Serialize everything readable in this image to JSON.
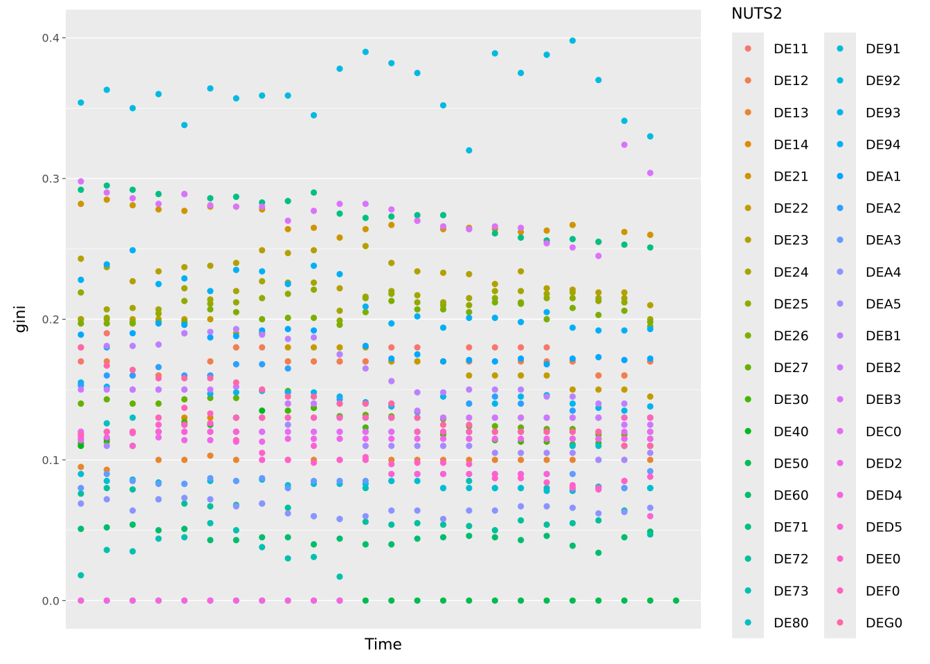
{
  "chart_data": {
    "type": "scatter",
    "xlabel": "Time",
    "ylabel": "gini",
    "ylim": [
      -0.02,
      0.42
    ],
    "yticks": [
      0.0,
      0.1,
      0.2,
      0.3,
      0.4
    ],
    "ytick_labels": [
      "0.0",
      "0.1",
      "0.2",
      "0.3",
      "0.4"
    ],
    "time_periods": 24,
    "grid": true,
    "background": "#ebebeb",
    "legend_title": "NUTS2",
    "legend_position": "right",
    "series": [
      {
        "name": "DE11",
        "color": "#F8766D",
        "values": [
          0.17,
          0.19,
          0.16,
          0.16,
          0.19,
          0.16,
          0.18,
          0.19,
          0.17,
          0.17,
          0.17,
          0.17,
          0.18,
          0.18,
          0.17,
          0.18,
          0.18,
          0.18,
          0.18,
          0.17,
          0.16,
          0.16,
          0.17
        ]
      },
      {
        "name": "DE12",
        "color": "#F17E4F",
        "values": [
          0.18,
          0.17,
          0.16,
          0.16,
          0.19,
          0.17,
          0.18,
          0.18,
          0.17,
          0.17,
          0.17,
          0.17,
          0.17,
          0.17,
          0.17,
          0.17,
          0.17,
          0.17,
          0.17,
          0.17,
          0.16,
          0.16,
          0.17
        ]
      },
      {
        "name": "DE13",
        "color": "#E8852F",
        "values": [
          0.095,
          0.093,
          0.11,
          0.1,
          0.1,
          0.103,
          0.1,
          0.1,
          0.1,
          0.1,
          0.1,
          0.1,
          0.1,
          0.1,
          0.1,
          0.1,
          0.1,
          0.1,
          0.1,
          0.1,
          0.1,
          0.1,
          0.1
        ]
      },
      {
        "name": "DE14",
        "color": "#DC8D00",
        "values": [
          0.12,
          0.12,
          0.12,
          0.13,
          0.13,
          0.13,
          0.13,
          0.13,
          0.13,
          0.13,
          0.13,
          0.13,
          0.13,
          0.13,
          0.13,
          0.13,
          0.13,
          0.13,
          0.13,
          0.13,
          0.13,
          0.13,
          0.13
        ]
      },
      {
        "name": "DE21",
        "color": "#D09400",
        "values": [
          0.282,
          0.285,
          0.281,
          0.278,
          0.277,
          0.28,
          0.28,
          0.278,
          0.264,
          0.265,
          0.258,
          0.264,
          0.267,
          0.27,
          0.264,
          0.265,
          0.264,
          0.262,
          0.263,
          0.267,
          0.255,
          0.262,
          0.26
        ]
      },
      {
        "name": "DE22",
        "color": "#C29B00",
        "values": [
          0.2,
          0.2,
          0.2,
          0.2,
          0.2,
          0.2,
          0.19,
          0.19,
          0.18,
          0.18,
          0.18,
          0.18,
          0.17,
          0.17,
          0.17,
          0.16,
          0.16,
          0.16,
          0.16,
          0.15,
          0.15,
          0.15,
          0.145
        ]
      },
      {
        "name": "DE23",
        "color": "#B3A000",
        "values": [
          0.243,
          0.237,
          0.227,
          0.234,
          0.237,
          0.238,
          0.24,
          0.249,
          0.247,
          0.249,
          0.222,
          0.252,
          0.24,
          0.234,
          0.233,
          0.232,
          0.225,
          0.234,
          0.222,
          0.221,
          0.219,
          0.219,
          0.21
        ]
      },
      {
        "name": "DE24",
        "color": "#A3A500",
        "values": [
          0.2,
          0.207,
          0.208,
          0.207,
          0.222,
          0.214,
          0.22,
          0.227,
          0.226,
          0.226,
          0.206,
          0.216,
          0.22,
          0.217,
          0.212,
          0.215,
          0.22,
          0.22,
          0.218,
          0.219,
          0.215,
          0.215,
          0.2
        ]
      },
      {
        "name": "DE25",
        "color": "#91AA00",
        "values": [
          0.219,
          0.201,
          0.198,
          0.204,
          0.213,
          0.211,
          0.212,
          0.215,
          0.218,
          0.221,
          0.199,
          0.215,
          0.218,
          0.212,
          0.21,
          0.21,
          0.215,
          0.212,
          0.215,
          0.215,
          0.213,
          0.212,
          0.195
        ]
      },
      {
        "name": "DE26",
        "color": "#7CAE00",
        "values": [
          0.197,
          0.197,
          0.197,
          0.198,
          0.198,
          0.207,
          0.205,
          0.2,
          0.201,
          0.201,
          0.196,
          0.205,
          0.213,
          0.207,
          0.207,
          0.205,
          0.212,
          0.211,
          0.2,
          0.208,
          0.203,
          0.206,
          0.198
        ]
      },
      {
        "name": "DE27",
        "color": "#64B200",
        "values": [
          0.14,
          0.143,
          0.14,
          0.14,
          0.143,
          0.144,
          0.144,
          0.13,
          0.149,
          0.137,
          0.131,
          0.132,
          0.131,
          0.13,
          0.129,
          0.124,
          0.124,
          0.123,
          0.122,
          0.122,
          0.118,
          0.118,
          0.11
        ]
      },
      {
        "name": "DE30",
        "color": "#45B500",
        "values": [
          0.112,
          0.113,
          0.12,
          0.12,
          0.127,
          0.126,
          0.13,
          0.13,
          0.135,
          0.137,
          0.131,
          0.123,
          0.13,
          0.12,
          0.118,
          0.115,
          0.114,
          0.113,
          0.113,
          0.111,
          0.112,
          0.11,
          0.12
        ]
      },
      {
        "name": "DE40",
        "color": "#00B81F",
        "values": [
          0.11,
          0.115,
          0.11,
          0.12,
          0.125,
          0.125,
          0.13,
          0.135,
          0.14,
          0.14,
          0.14,
          0.13,
          0.13,
          0.12,
          0.12,
          0.12,
          0.12,
          0.12,
          0.12,
          0.115,
          0.115,
          0.115,
          0.115
        ]
      },
      {
        "name": "DE50",
        "color": "#00BB4E",
        "values": [
          0.0,
          0.0,
          0.0,
          0.0,
          0.0,
          0.0,
          0.0,
          0.0,
          0.0,
          0.0,
          0.0,
          0.0,
          0.0,
          0.0,
          0.0,
          0.0,
          0.0,
          0.0,
          0.0,
          0.0,
          0.0,
          0.0,
          0.0,
          0.0
        ]
      },
      {
        "name": "DE60",
        "color": "#00BD6C",
        "values": [
          0.051,
          0.052,
          0.054,
          0.05,
          0.051,
          0.043,
          0.043,
          0.045,
          0.045,
          0.04,
          0.044,
          0.04,
          0.04,
          0.044,
          0.045,
          0.046,
          0.045,
          0.043,
          0.046,
          0.039,
          0.034,
          0.045,
          0.049
        ]
      },
      {
        "name": "DE71",
        "color": "#00BF85",
        "values": [
          0.292,
          0.295,
          0.292,
          0.289,
          0.289,
          0.286,
          0.287,
          0.283,
          0.284,
          0.29,
          0.275,
          0.272,
          0.273,
          0.274,
          0.274,
          0.264,
          0.261,
          0.258,
          0.256,
          0.257,
          0.255,
          0.253,
          0.251
        ]
      },
      {
        "name": "DE72",
        "color": "#00C09B",
        "values": [
          0.076,
          0.08,
          0.079,
          0.072,
          0.069,
          0.067,
          0.068,
          0.069,
          0.066,
          0.06,
          0.058,
          0.056,
          0.054,
          0.055,
          0.054,
          0.053,
          0.05,
          0.057,
          0.054,
          0.055,
          0.057,
          0.064,
          0.047
        ]
      },
      {
        "name": "DE73",
        "color": "#00C1AF",
        "values": [
          0.018,
          0.036,
          0.035,
          0.044,
          0.045,
          0.055,
          0.05,
          0.038,
          0.03,
          0.031,
          0.017,
          0.08,
          0.085,
          0.09,
          0.08,
          0.085,
          0.08,
          0.08,
          0.08,
          0.08,
          0.081,
          0.08,
          0.08
        ]
      },
      {
        "name": "DE80",
        "color": "#00C0C2",
        "values": [
          0.115,
          0.126,
          0.13,
          0.12,
          0.12,
          0.12,
          0.12,
          0.12,
          0.13,
          0.13,
          0.13,
          0.12,
          0.12,
          0.12,
          0.12,
          0.12,
          0.12,
          0.12,
          0.12,
          0.11,
          0.11,
          0.11,
          0.11
        ]
      },
      {
        "name": "DE91",
        "color": "#00BDD3",
        "values": [
          0.09,
          0.085,
          0.086,
          0.084,
          0.083,
          0.085,
          0.085,
          0.086,
          0.082,
          0.083,
          0.083,
          0.083,
          0.085,
          0.085,
          0.08,
          0.08,
          0.08,
          0.08,
          0.078,
          0.078,
          0.08,
          0.08,
          0.08
        ]
      },
      {
        "name": "DE92",
        "color": "#00BAE0",
        "values": [
          0.354,
          0.363,
          0.35,
          0.36,
          0.338,
          0.364,
          0.357,
          0.359,
          0.359,
          0.345,
          0.378,
          0.39,
          0.382,
          0.375,
          0.352,
          0.32,
          0.389,
          0.375,
          0.388,
          0.398,
          0.37,
          0.341,
          0.33
        ]
      },
      {
        "name": "DE93",
        "color": "#00B5EC",
        "values": [
          0.155,
          0.152,
          0.15,
          0.15,
          0.15,
          0.147,
          0.148,
          0.149,
          0.148,
          0.148,
          0.145,
          0.141,
          0.138,
          0.134,
          0.145,
          0.14,
          0.14,
          0.145,
          0.146,
          0.14,
          0.137,
          0.135,
          0.138
        ]
      },
      {
        "name": "DE94",
        "color": "#00B0F6",
        "values": [
          0.228,
          0.239,
          0.249,
          0.225,
          0.229,
          0.22,
          0.235,
          0.234,
          0.225,
          0.238,
          0.232,
          0.209,
          0.197,
          0.202,
          0.194,
          0.201,
          0.201,
          0.198,
          0.205,
          0.194,
          0.192,
          0.192,
          0.193
        ]
      },
      {
        "name": "DEA1",
        "color": "#00A8FF",
        "values": [
          0.189,
          0.18,
          0.19,
          0.197,
          0.196,
          0.187,
          0.188,
          0.192,
          0.193,
          0.192,
          0.175,
          0.181,
          0.172,
          0.175,
          0.17,
          0.171,
          0.17,
          0.172,
          0.168,
          0.172,
          0.173,
          0.171,
          0.172
        ]
      },
      {
        "name": "DEA2",
        "color": "#2BA0FF",
        "values": [
          0.153,
          0.16,
          0.16,
          0.166,
          0.16,
          0.16,
          0.168,
          0.168,
          0.165,
          0.145,
          0.143,
          0.14,
          0.14,
          0.13,
          0.13,
          0.14,
          0.145,
          0.14,
          0.13,
          0.135,
          0.13,
          0.13,
          0.13
        ]
      },
      {
        "name": "DEA3",
        "color": "#619CFF",
        "values": [
          0.08,
          0.09,
          0.085,
          0.083,
          0.083,
          0.087,
          0.085,
          0.087,
          0.08,
          0.085,
          0.085,
          0.085,
          0.09,
          0.09,
          0.09,
          0.09,
          0.09,
          0.09,
          0.09,
          0.09,
          0.1,
          0.08,
          0.092
        ]
      },
      {
        "name": "DEA4",
        "color": "#8A94FF",
        "values": [
          0.069,
          0.072,
          0.064,
          0.072,
          0.073,
          0.072,
          0.067,
          0.069,
          0.062,
          0.06,
          0.058,
          0.06,
          0.064,
          0.064,
          0.058,
          0.064,
          0.064,
          0.067,
          0.067,
          0.066,
          0.062,
          0.063,
          0.066
        ]
      },
      {
        "name": "DEA5",
        "color": "#A58AFF",
        "values": [
          0.115,
          0.11,
          0.12,
          0.12,
          0.12,
          0.12,
          0.12,
          0.12,
          0.125,
          0.12,
          0.12,
          0.11,
          0.11,
          0.11,
          0.11,
          0.11,
          0.105,
          0.105,
          0.105,
          0.105,
          0.1,
          0.1,
          0.105
        ]
      },
      {
        "name": "DEB1",
        "color": "#BA81FF",
        "values": [
          0.18,
          0.181,
          0.181,
          0.182,
          0.19,
          0.191,
          0.193,
          0.189,
          0.186,
          0.187,
          0.175,
          0.165,
          0.156,
          0.148,
          0.148,
          0.15,
          0.15,
          0.15,
          0.145,
          0.145,
          0.14,
          0.14,
          0.13
        ]
      },
      {
        "name": "DEB2",
        "color": "#CB78FF",
        "values": [
          0.15,
          0.15,
          0.15,
          0.15,
          0.15,
          0.15,
          0.152,
          0.15,
          0.14,
          0.14,
          0.14,
          0.14,
          0.14,
          0.135,
          0.13,
          0.13,
          0.13,
          0.13,
          0.13,
          0.13,
          0.13,
          0.125,
          0.125
        ]
      },
      {
        "name": "DEB3",
        "color": "#DB72FB",
        "values": [
          0.298,
          0.29,
          0.286,
          0.282,
          0.289,
          0.281,
          0.28,
          0.28,
          0.27,
          0.277,
          0.282,
          0.282,
          0.278,
          0.27,
          0.266,
          0.264,
          0.266,
          0.265,
          0.254,
          0.251,
          0.245,
          0.324,
          0.304
        ]
      },
      {
        "name": "DEC0",
        "color": "#E76BF3",
        "values": [
          0.12,
          0.12,
          0.12,
          0.12,
          0.12,
          0.12,
          0.12,
          0.12,
          0.12,
          0.12,
          0.12,
          0.12,
          0.12,
          0.12,
          0.12,
          0.12,
          0.12,
          0.12,
          0.12,
          0.12,
          0.12,
          0.12,
          0.12
        ]
      },
      {
        "name": "DED2",
        "color": "#F066EA",
        "values": [
          0.114,
          0.116,
          0.119,
          0.116,
          0.114,
          0.114,
          0.113,
          0.113,
          0.115,
          0.115,
          0.115,
          0.115,
          0.115,
          0.115,
          0.115,
          0.115,
          0.115,
          0.115,
          0.115,
          0.115,
          0.115,
          0.115,
          0.115
        ]
      },
      {
        "name": "DED4",
        "color": "#F763E0",
        "values": [
          0.0,
          0.0,
          0.0,
          0.0,
          0.0,
          0.0,
          0.0,
          0.0,
          0.0,
          0.0,
          0.0
        ]
      },
      {
        "name": "DED5",
        "color": "#FC61D5",
        "values": [
          0.118,
          0.12,
          0.11,
          0.12,
          0.12,
          0.12,
          0.12,
          0.1,
          0.1,
          0.11,
          0.1,
          0.1,
          0.09,
          0.09,
          0.09,
          0.09,
          0.09,
          0.09,
          0.09,
          0.08,
          0.08,
          0.085,
          0.06
        ]
      },
      {
        "name": "DEE0",
        "color": "#FF61C9",
        "values": [
          0.117,
          0.12,
          0.12,
          0.125,
          0.125,
          0.126,
          0.114,
          0.105,
          0.1,
          0.098,
          0.1,
          0.102,
          0.097,
          0.098,
          0.098,
          0.097,
          0.087,
          0.087,
          0.084,
          0.082,
          0.079,
          0.085,
          0.088
        ]
      },
      {
        "name": "DEF0",
        "color": "#FF63BC",
        "values": [
          0.118,
          0.12,
          0.12,
          0.13,
          0.137,
          0.133,
          0.13,
          0.13,
          0.13,
          0.13,
          0.13,
          0.13,
          0.13,
          0.12,
          0.12,
          0.12,
          0.12,
          0.12,
          0.12,
          0.12,
          0.12,
          0.13,
          0.13
        ]
      },
      {
        "name": "DEG0",
        "color": "#FF67A4",
        "values": [
          0.18,
          0.167,
          0.164,
          0.158,
          0.158,
          0.158,
          0.155,
          0.15,
          0.145,
          0.145,
          0.14,
          0.14,
          0.14,
          0.13,
          0.125,
          0.125,
          0.12,
          0.12,
          0.12,
          0.12,
          0.12,
          0.11,
          0.11
        ]
      }
    ]
  }
}
